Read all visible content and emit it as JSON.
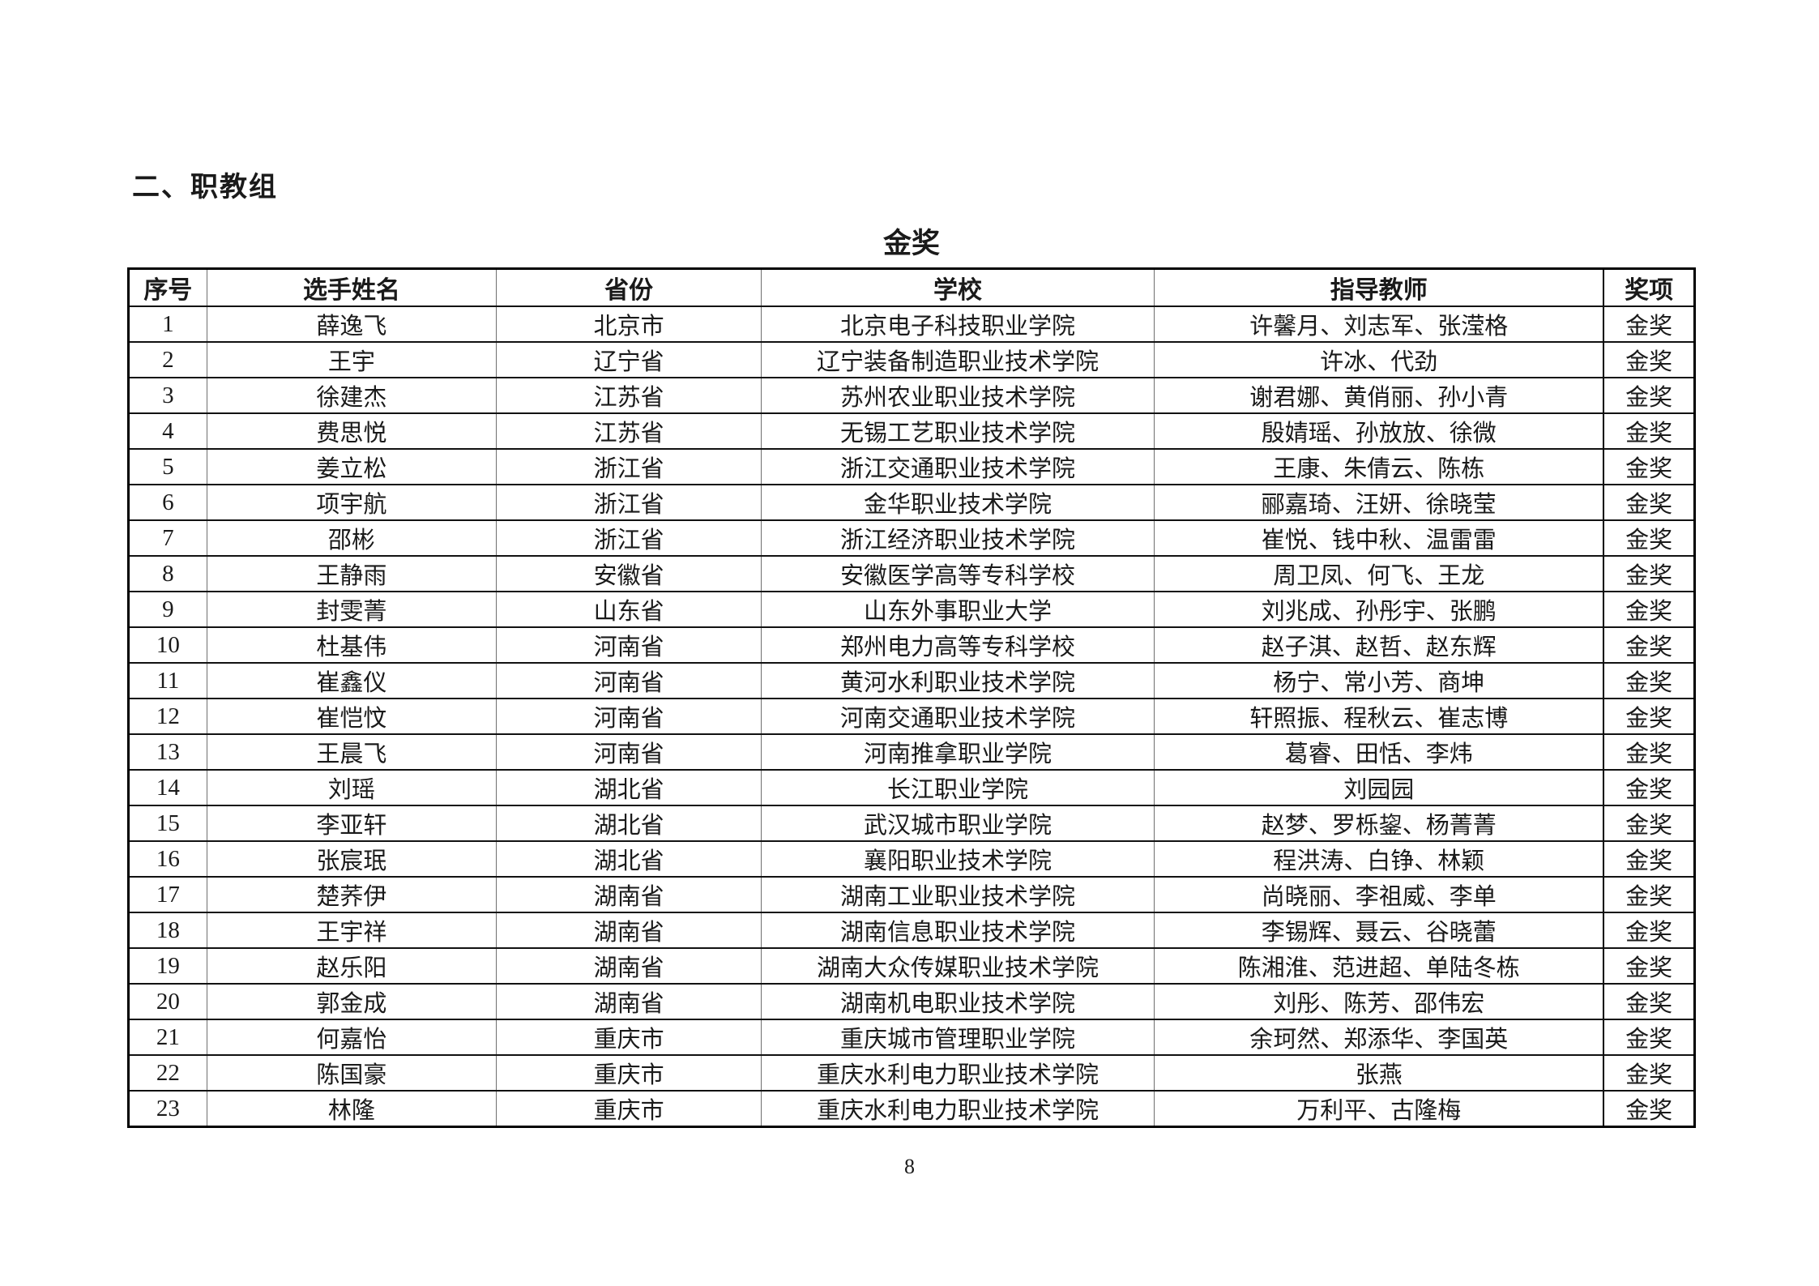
{
  "page": {
    "section_title": "二、职教组",
    "table_title": "金奖",
    "page_number": "8"
  },
  "table": {
    "headers": [
      "序号",
      "选手姓名",
      "省份",
      "学校",
      "指导教师",
      "奖项"
    ],
    "rows": [
      [
        "1",
        "薛逸飞",
        "北京市",
        "北京电子科技职业学院",
        "许馨月、刘志军、张滢格",
        "金奖"
      ],
      [
        "2",
        "王宇",
        "辽宁省",
        "辽宁装备制造职业技术学院",
        "许冰、代劲",
        "金奖"
      ],
      [
        "3",
        "徐建杰",
        "江苏省",
        "苏州农业职业技术学院",
        "谢君娜、黄俏丽、孙小青",
        "金奖"
      ],
      [
        "4",
        "费思悦",
        "江苏省",
        "无锡工艺职业技术学院",
        "殷婧瑶、孙放放、徐微",
        "金奖"
      ],
      [
        "5",
        "姜立松",
        "浙江省",
        "浙江交通职业技术学院",
        "王康、朱倩云、陈栋",
        "金奖"
      ],
      [
        "6",
        "项宇航",
        "浙江省",
        "金华职业技术学院",
        "郦嘉琦、汪妍、徐晓莹",
        "金奖"
      ],
      [
        "7",
        "邵彬",
        "浙江省",
        "浙江经济职业技术学院",
        "崔悦、钱中秋、温雷雷",
        "金奖"
      ],
      [
        "8",
        "王静雨",
        "安徽省",
        "安徽医学高等专科学校",
        "周卫凤、何飞、王龙",
        "金奖"
      ],
      [
        "9",
        "封雯菁",
        "山东省",
        "山东外事职业大学",
        "刘兆成、孙彤宇、张鹏",
        "金奖"
      ],
      [
        "10",
        "杜基伟",
        "河南省",
        "郑州电力高等专科学校",
        "赵子淇、赵哲、赵东辉",
        "金奖"
      ],
      [
        "11",
        "崔鑫仪",
        "河南省",
        "黄河水利职业技术学院",
        "杨宁、常小芳、商坤",
        "金奖"
      ],
      [
        "12",
        "崔恺忟",
        "河南省",
        "河南交通职业技术学院",
        "轩照振、程秋云、崔志博",
        "金奖"
      ],
      [
        "13",
        "王晨飞",
        "河南省",
        "河南推拿职业学院",
        "葛睿、田恬、李炜",
        "金奖"
      ],
      [
        "14",
        "刘瑶",
        "湖北省",
        "长江职业学院",
        "刘园园",
        "金奖"
      ],
      [
        "15",
        "李亚轩",
        "湖北省",
        "武汉城市职业学院",
        "赵梦、罗栎鋆、杨菁菁",
        "金奖"
      ],
      [
        "16",
        "张宸珉",
        "湖北省",
        "襄阳职业技术学院",
        "程洪涛、白铮、林颖",
        "金奖"
      ],
      [
        "17",
        "楚荞伊",
        "湖南省",
        "湖南工业职业技术学院",
        "尚晓丽、李祖威、李单",
        "金奖"
      ],
      [
        "18",
        "王宇祥",
        "湖南省",
        "湖南信息职业技术学院",
        "李锡辉、聂云、谷晓蕾",
        "金奖"
      ],
      [
        "19",
        "赵乐阳",
        "湖南省",
        "湖南大众传媒职业技术学院",
        "陈湘淮、范进超、单陆冬栋",
        "金奖"
      ],
      [
        "20",
        "郭金成",
        "湖南省",
        "湖南机电职业技术学院",
        "刘彤、陈芳、邵伟宏",
        "金奖"
      ],
      [
        "21",
        "何嘉怡",
        "重庆市",
        "重庆城市管理职业学院",
        "余珂然、郑添华、李国英",
        "金奖"
      ],
      [
        "22",
        "陈国豪",
        "重庆市",
        "重庆水利电力职业技术学院",
        "张燕",
        "金奖"
      ],
      [
        "23",
        "林隆",
        "重庆市",
        "重庆水利电力职业技术学院",
        "万利平、古隆梅",
        "金奖"
      ]
    ],
    "column_widths_percent": [
      5.0,
      18.5,
      16.9,
      25.1,
      28.7,
      5.8
    ]
  }
}
